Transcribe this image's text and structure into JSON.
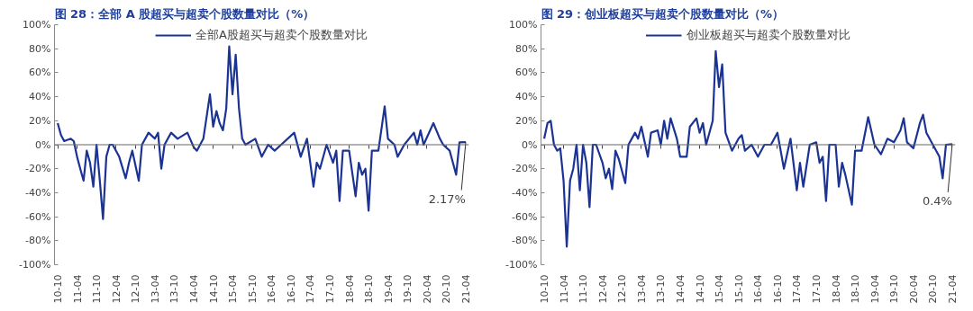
{
  "chart_data": [
    {
      "type": "line",
      "title": "图 28：全部 A 股超买与超卖个股数量对比（%）",
      "legend": "top",
      "grid": false,
      "marker": "none",
      "line_style": "solid",
      "xlim": [
        "2010-09",
        "2021-05"
      ],
      "xticks": [
        {
          "value": "2010-10",
          "label": "10-10"
        },
        {
          "value": "2011-04",
          "label": "11-04"
        },
        {
          "value": "2011-10",
          "label": "11-10"
        },
        {
          "value": "2012-04",
          "label": "12-04"
        },
        {
          "value": "2012-10",
          "label": "12-10"
        },
        {
          "value": "2013-04",
          "label": "13-04"
        },
        {
          "value": "2013-10",
          "label": "13-10"
        },
        {
          "value": "2014-04",
          "label": "14-04"
        },
        {
          "value": "2014-10",
          "label": "14-10"
        },
        {
          "value": "2015-04",
          "label": "15-04"
        },
        {
          "value": "2015-10",
          "label": "15-10"
        },
        {
          "value": "2016-04",
          "label": "16-04"
        },
        {
          "value": "2016-10",
          "label": "16-10"
        },
        {
          "value": "2017-04",
          "label": "17-04"
        },
        {
          "value": "2017-10",
          "label": "17-10"
        },
        {
          "value": "2018-04",
          "label": "18-04"
        },
        {
          "value": "2018-10",
          "label": "18-10"
        },
        {
          "value": "2019-04",
          "label": "19-04"
        },
        {
          "value": "2019-10",
          "label": "19-10"
        },
        {
          "value": "2020-04",
          "label": "20-04"
        },
        {
          "value": "2020-10",
          "label": "20-10"
        },
        {
          "value": "2021-04",
          "label": "21-04"
        }
      ],
      "ylim": [
        -100,
        100
      ],
      "yticks": [
        {
          "value": -100,
          "label": "-100%"
        },
        {
          "value": -80,
          "label": "-80%"
        },
        {
          "value": -60,
          "label": "-60%"
        },
        {
          "value": -40,
          "label": "-40%"
        },
        {
          "value": -20,
          "label": "-20%"
        },
        {
          "value": 0,
          "label": "0%"
        },
        {
          "value": 20,
          "label": "20%"
        },
        {
          "value": 40,
          "label": "40%"
        },
        {
          "value": 60,
          "label": "60%"
        },
        {
          "value": 80,
          "label": "80%"
        },
        {
          "value": 100,
          "label": "100%"
        }
      ],
      "annotations": [
        {
          "text": "2.17%",
          "x": "2021-04",
          "y": 2.17
        }
      ],
      "ref_lines": [
        {
          "axis": "y",
          "value": 0,
          "color": "#666666"
        }
      ],
      "series": [
        {
          "name": "全部A股超买与超卖个股数量对比",
          "color": "#1b3393",
          "x": [
            "2010-10",
            "2010-11",
            "2010-12",
            "2011-02",
            "2011-03",
            "2011-04",
            "2011-05",
            "2011-06",
            "2011-07",
            "2011-08",
            "2011-09",
            "2011-10",
            "2011-11",
            "2011-12",
            "2012-01",
            "2012-02",
            "2012-03",
            "2012-05",
            "2012-07",
            "2012-08",
            "2012-09",
            "2012-11",
            "2012-12",
            "2013-02",
            "2013-04",
            "2013-05",
            "2013-06",
            "2013-07",
            "2013-09",
            "2013-11",
            "2014-02",
            "2014-04",
            "2014-05",
            "2014-07",
            "2014-09",
            "2014-10",
            "2014-11",
            "2014-12",
            "2015-01",
            "2015-02",
            "2015-03",
            "2015-04",
            "2015-05",
            "2015-06",
            "2015-07",
            "2015-08",
            "2015-11",
            "2016-01",
            "2016-03",
            "2016-05",
            "2016-07",
            "2016-11",
            "2017-01",
            "2017-03",
            "2017-05",
            "2017-06",
            "2017-07",
            "2017-09",
            "2017-11",
            "2017-12",
            "2018-01",
            "2018-02",
            "2018-04",
            "2018-06",
            "2018-07",
            "2018-08",
            "2018-09",
            "2018-10",
            "2018-11",
            "2019-01",
            "2019-03",
            "2019-04",
            "2019-06",
            "2019-07",
            "2019-09",
            "2019-12",
            "2020-01",
            "2020-02",
            "2020-03",
            "2020-06",
            "2020-08",
            "2020-09",
            "2020-11",
            "2021-01",
            "2021-02",
            "2021-04"
          ],
          "values": [
            18,
            8,
            3,
            5,
            3,
            -10,
            -20,
            -30,
            -5,
            -15,
            -35,
            0,
            -30,
            -62,
            -10,
            0,
            0,
            -10,
            -28,
            -15,
            -5,
            -30,
            0,
            10,
            5,
            10,
            -20,
            0,
            10,
            5,
            10,
            -2,
            -5,
            5,
            42,
            15,
            28,
            18,
            12,
            30,
            82,
            42,
            75,
            30,
            5,
            0,
            5,
            -10,
            0,
            -5,
            0,
            10,
            -10,
            5,
            -35,
            -15,
            -20,
            0,
            -15,
            -5,
            -47,
            -5,
            -5,
            -43,
            -15,
            -25,
            -20,
            -55,
            -5,
            -5,
            32,
            5,
            0,
            -10,
            0,
            10,
            0,
            12,
            0,
            18,
            5,
            0,
            -5,
            -25,
            2,
            2.17
          ]
        }
      ]
    },
    {
      "type": "line",
      "title": "图 29：创业板超买与超卖个股数量对比（%）",
      "legend": "top",
      "grid": false,
      "marker": "none",
      "line_style": "solid",
      "xlim": [
        "2010-09",
        "2021-05"
      ],
      "xticks": [
        {
          "value": "2010-10",
          "label": "10-10"
        },
        {
          "value": "2011-04",
          "label": "11-04"
        },
        {
          "value": "2011-10",
          "label": "11-10"
        },
        {
          "value": "2012-04",
          "label": "12-04"
        },
        {
          "value": "2012-10",
          "label": "12-10"
        },
        {
          "value": "2013-04",
          "label": "13-04"
        },
        {
          "value": "2013-10",
          "label": "13-10"
        },
        {
          "value": "2014-04",
          "label": "14-04"
        },
        {
          "value": "2014-10",
          "label": "14-10"
        },
        {
          "value": "2015-04",
          "label": "15-04"
        },
        {
          "value": "2015-10",
          "label": "15-10"
        },
        {
          "value": "2016-04",
          "label": "16-04"
        },
        {
          "value": "2016-10",
          "label": "16-10"
        },
        {
          "value": "2017-04",
          "label": "17-04"
        },
        {
          "value": "2017-10",
          "label": "17-10"
        },
        {
          "value": "2018-04",
          "label": "18-04"
        },
        {
          "value": "2018-10",
          "label": "18-10"
        },
        {
          "value": "2019-04",
          "label": "19-04"
        },
        {
          "value": "2019-10",
          "label": "19-10"
        },
        {
          "value": "2020-04",
          "label": "20-04"
        },
        {
          "value": "2020-10",
          "label": "20-10"
        },
        {
          "value": "2021-04",
          "label": "21-04"
        }
      ],
      "ylim": [
        -100,
        100
      ],
      "yticks": [
        {
          "value": -100,
          "label": "-100%"
        },
        {
          "value": -80,
          "label": "-80%"
        },
        {
          "value": -60,
          "label": "-60%"
        },
        {
          "value": -40,
          "label": "-40%"
        },
        {
          "value": -20,
          "label": "-20%"
        },
        {
          "value": 0,
          "label": "0%"
        },
        {
          "value": 20,
          "label": "20%"
        },
        {
          "value": 40,
          "label": "40%"
        },
        {
          "value": 60,
          "label": "60%"
        },
        {
          "value": 80,
          "label": "80%"
        },
        {
          "value": 100,
          "label": "100%"
        }
      ],
      "annotations": [
        {
          "text": "0.4%",
          "x": "2021-04",
          "y": 0.4
        }
      ],
      "ref_lines": [
        {
          "axis": "y",
          "value": 0,
          "color": "#666666"
        }
      ],
      "series": [
        {
          "name": "创业板超买与超卖个股数量对比",
          "color": "#1b3393",
          "x": [
            "2010-10",
            "2010-11",
            "2010-12",
            "2011-01",
            "2011-02",
            "2011-03",
            "2011-04",
            "2011-05",
            "2011-06",
            "2011-07",
            "2011-08",
            "2011-09",
            "2011-10",
            "2011-11",
            "2011-12",
            "2012-01",
            "2012-02",
            "2012-04",
            "2012-05",
            "2012-06",
            "2012-07",
            "2012-08",
            "2012-09",
            "2012-11",
            "2012-12",
            "2013-02",
            "2013-03",
            "2013-04",
            "2013-06",
            "2013-07",
            "2013-09",
            "2013-10",
            "2013-11",
            "2013-12",
            "2014-01",
            "2014-03",
            "2014-04",
            "2014-06",
            "2014-07",
            "2014-09",
            "2014-10",
            "2014-11",
            "2014-12",
            "2015-02",
            "2015-03",
            "2015-04",
            "2015-05",
            "2015-06",
            "2015-08",
            "2015-10",
            "2015-11",
            "2015-12",
            "2016-02",
            "2016-04",
            "2016-06",
            "2016-08",
            "2016-10",
            "2016-12",
            "2017-02",
            "2017-04",
            "2017-05",
            "2017-06",
            "2017-08",
            "2017-10",
            "2017-11",
            "2017-12",
            "2018-01",
            "2018-02",
            "2018-04",
            "2018-05",
            "2018-06",
            "2018-07",
            "2018-09",
            "2018-10",
            "2018-12",
            "2019-02",
            "2019-04",
            "2019-06",
            "2019-08",
            "2019-10",
            "2019-12",
            "2020-01",
            "2020-02",
            "2020-04",
            "2020-06",
            "2020-07",
            "2020-08",
            "2020-10",
            "2020-12",
            "2021-01",
            "2021-02",
            "2021-04"
          ],
          "values": [
            5,
            18,
            20,
            0,
            -5,
            -3,
            -30,
            -85,
            -30,
            -20,
            0,
            -38,
            0,
            -15,
            -52,
            0,
            0,
            -15,
            -28,
            -20,
            -37,
            -5,
            -12,
            -32,
            0,
            10,
            5,
            15,
            -10,
            10,
            12,
            0,
            20,
            5,
            22,
            5,
            -10,
            -10,
            15,
            22,
            10,
            18,
            0,
            20,
            78,
            48,
            67,
            10,
            -5,
            5,
            8,
            -5,
            0,
            -10,
            0,
            0,
            10,
            -20,
            5,
            -38,
            -15,
            -35,
            0,
            2,
            -15,
            -10,
            -47,
            0,
            0,
            -35,
            -15,
            -25,
            -50,
            -5,
            -5,
            23,
            0,
            -8,
            5,
            2,
            12,
            22,
            2,
            -3,
            18,
            25,
            10,
            0,
            -10,
            -28,
            0,
            0.4
          ]
        }
      ]
    }
  ]
}
